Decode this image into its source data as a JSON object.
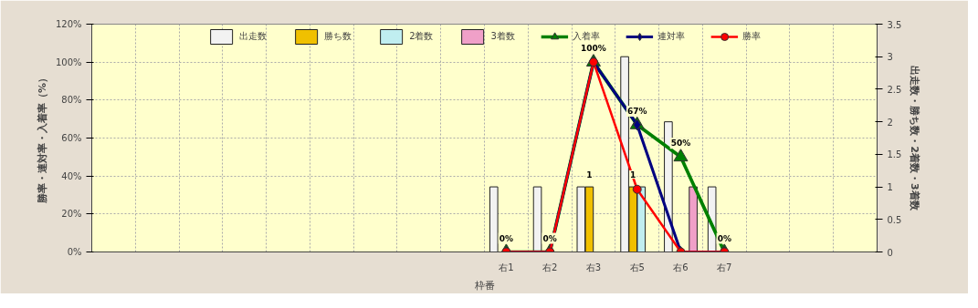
{
  "chart_data": {
    "type": "bar",
    "xlabel": "枠番",
    "ylabel": "勝率・連対率・入着率（%）",
    "y2label": "出走数・勝ち数・2着数・3着数",
    "categories": [
      null,
      null,
      null,
      null,
      null,
      null,
      null,
      null,
      null,
      "右1",
      "右2",
      "右3",
      "右5",
      "右6",
      "右7",
      null,
      null,
      null
    ],
    "series": [
      {
        "name": "出走数",
        "axis": "y2",
        "color": "#f2f2f2",
        "values": [
          null,
          null,
          null,
          null,
          null,
          null,
          null,
          null,
          null,
          1,
          1,
          1,
          3,
          2,
          1,
          null,
          null,
          null
        ]
      },
      {
        "name": "勝ち数",
        "axis": "y2",
        "color": "#f0c000",
        "values": [
          null,
          null,
          null,
          null,
          null,
          null,
          null,
          null,
          null,
          null,
          null,
          1,
          1,
          null,
          null,
          null,
          null,
          null
        ],
        "value_labels": [
          null,
          null,
          null,
          null,
          null,
          null,
          null,
          null,
          null,
          null,
          null,
          "1",
          "1",
          null,
          null,
          null,
          null,
          null
        ]
      },
      {
        "name": "2着数",
        "axis": "y2",
        "color": "#c0eef0",
        "values": [
          null,
          null,
          null,
          null,
          null,
          null,
          null,
          null,
          null,
          null,
          null,
          null,
          1,
          null,
          null,
          null,
          null,
          null
        ]
      },
      {
        "name": "3着数",
        "axis": "y2",
        "color": "#f0a0c8",
        "values": [
          null,
          null,
          null,
          null,
          null,
          null,
          null,
          null,
          null,
          null,
          null,
          null,
          null,
          1,
          null,
          null,
          null,
          null
        ]
      },
      {
        "name": "入着率",
        "type": "line",
        "color": "#008000",
        "marker": "triangle",
        "values": [
          null,
          null,
          null,
          null,
          null,
          null,
          null,
          null,
          null,
          0,
          0,
          100,
          67,
          50,
          0,
          null,
          null,
          null
        ],
        "value_labels": [
          null,
          null,
          null,
          null,
          null,
          null,
          null,
          null,
          null,
          "0%",
          "0%",
          "100%",
          "67%",
          "50%",
          "0%",
          null,
          null,
          null
        ]
      },
      {
        "name": "連対率",
        "type": "line",
        "color": "#000080",
        "marker": "diamond",
        "values": [
          null,
          null,
          null,
          null,
          null,
          null,
          null,
          null,
          null,
          0,
          0,
          100,
          67,
          0,
          0,
          null,
          null,
          null
        ]
      },
      {
        "name": "勝率",
        "type": "line",
        "color": "#ff0000",
        "marker": "circle",
        "values": [
          null,
          null,
          null,
          null,
          null,
          null,
          null,
          null,
          null,
          0,
          0,
          100,
          33,
          0,
          0,
          null,
          null,
          null
        ]
      }
    ],
    "ylim": [
      0,
      120
    ],
    "yticks": [
      {
        "value": 0,
        "label": "0%"
      },
      {
        "value": 20,
        "label": "20%"
      },
      {
        "value": 40,
        "label": "40%"
      },
      {
        "value": 60,
        "label": "60%"
      },
      {
        "value": 80,
        "label": "80%"
      },
      {
        "value": 100,
        "label": "100%"
      },
      {
        "value": 120,
        "label": "120%"
      }
    ],
    "y2lim": [
      0,
      3.5
    ],
    "y2ticks": [
      0,
      0.5,
      1,
      1.5,
      2,
      2.5,
      3,
      3.5
    ],
    "grid": true,
    "legend": "top"
  }
}
